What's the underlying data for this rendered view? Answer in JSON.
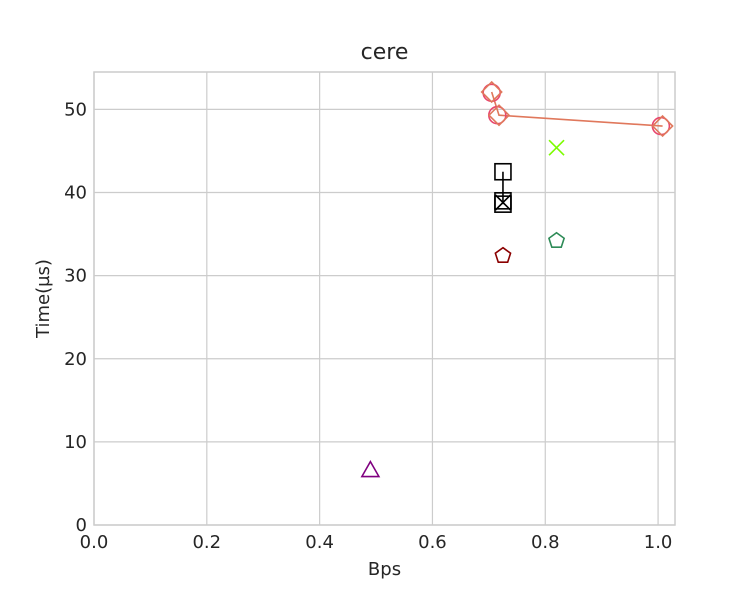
{
  "chart_data": {
    "type": "scatter",
    "title": "cere",
    "xlabel": "Bps",
    "ylabel": "Time(µs)",
    "xlim": [
      0.0,
      1.03
    ],
    "ylim": [
      0,
      54.5
    ],
    "xticks": [
      "0.0",
      "0.2",
      "0.4",
      "0.6",
      "0.8",
      "1.0"
    ],
    "yticks": [
      "0",
      "10",
      "20",
      "30",
      "40",
      "50"
    ],
    "grid": true,
    "series": [
      {
        "marker": "circle",
        "color": "#e8476e",
        "line": false,
        "points": [
          {
            "x": 0.705,
            "y": 52.0
          },
          {
            "x": 0.715,
            "y": 49.3
          },
          {
            "x": 1.005,
            "y": 48.0
          }
        ]
      },
      {
        "marker": "diamond",
        "color": "#e0785c",
        "line": true,
        "points": [
          {
            "x": 0.705,
            "y": 52.1
          },
          {
            "x": 0.718,
            "y": 49.3
          },
          {
            "x": 1.008,
            "y": 48.0
          }
        ]
      },
      {
        "marker": "square",
        "color": "#000000",
        "line": true,
        "points": [
          {
            "x": 0.725,
            "y": 42.5
          },
          {
            "x": 0.725,
            "y": 39.0
          },
          {
            "x": 0.725,
            "y": 38.6
          }
        ]
      },
      {
        "marker": "x",
        "color": "#000000",
        "line": false,
        "points": [
          {
            "x": 0.725,
            "y": 38.8
          }
        ]
      },
      {
        "marker": "x",
        "color": "#7cfc00",
        "line": false,
        "points": [
          {
            "x": 0.82,
            "y": 45.4
          }
        ]
      },
      {
        "marker": "pentagon",
        "color": "#2e8b57",
        "line": false,
        "points": [
          {
            "x": 0.82,
            "y": 34.2
          }
        ]
      },
      {
        "marker": "pentagon",
        "color": "#8b0000",
        "line": false,
        "points": [
          {
            "x": 0.725,
            "y": 32.4
          }
        ]
      },
      {
        "marker": "triangle",
        "color": "#800080",
        "line": false,
        "points": [
          {
            "x": 0.49,
            "y": 6.6
          }
        ]
      }
    ]
  }
}
